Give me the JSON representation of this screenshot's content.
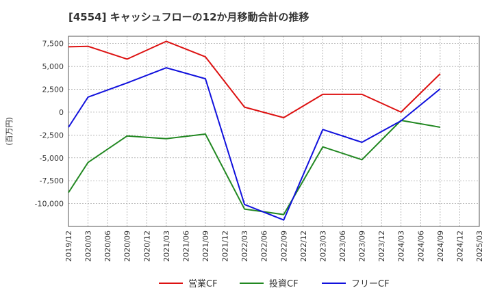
{
  "chart_data": {
    "type": "line",
    "title": "[4554]  キャッシュフローの12か月移動合計の推移",
    "ylabel": "(百万円)",
    "xlabel": "",
    "ylim": [
      -12500,
      8300
    ],
    "yticks": [
      7500,
      5000,
      2500,
      0,
      -2500,
      -5000,
      -7500,
      -10000
    ],
    "ytick_labels": [
      "7,500",
      "5,000",
      "2,500",
      "0",
      "-2,500",
      "-5,000",
      "-7,500",
      "-10,000"
    ],
    "categories": [
      "2019/12",
      "2020/03",
      "2020/06",
      "2020/09",
      "2020/12",
      "2021/03",
      "2021/06",
      "2021/09",
      "2021/12",
      "2022/03",
      "2022/06",
      "2022/09",
      "2022/12",
      "2023/03",
      "2023/06",
      "2023/09",
      "2023/12",
      "2024/03",
      "2024/06",
      "2024/09",
      "2024/12",
      "2025/03"
    ],
    "grid": true,
    "legend_position": "bottom",
    "series": [
      {
        "name": "営業CF",
        "color": "#dd1111",
        "values": [
          7150,
          7200,
          null,
          5800,
          null,
          7750,
          null,
          6050,
          null,
          550,
          null,
          -600,
          null,
          1950,
          null,
          1950,
          null,
          0,
          null,
          4200,
          null,
          null
        ]
      },
      {
        "name": "投資CF",
        "color": "#228822",
        "values": [
          -8800,
          -5500,
          null,
          -2600,
          null,
          -2900,
          null,
          -2400,
          null,
          -10600,
          null,
          -11200,
          null,
          -3800,
          null,
          -5200,
          null,
          -900,
          null,
          -1650,
          null,
          null
        ]
      },
      {
        "name": "フリーCF",
        "color": "#1111dd",
        "values": [
          -1650,
          1650,
          null,
          3200,
          null,
          4850,
          null,
          3650,
          null,
          -10100,
          null,
          -11800,
          null,
          -1900,
          null,
          -3300,
          null,
          -950,
          null,
          2550,
          null,
          null
        ]
      }
    ]
  }
}
